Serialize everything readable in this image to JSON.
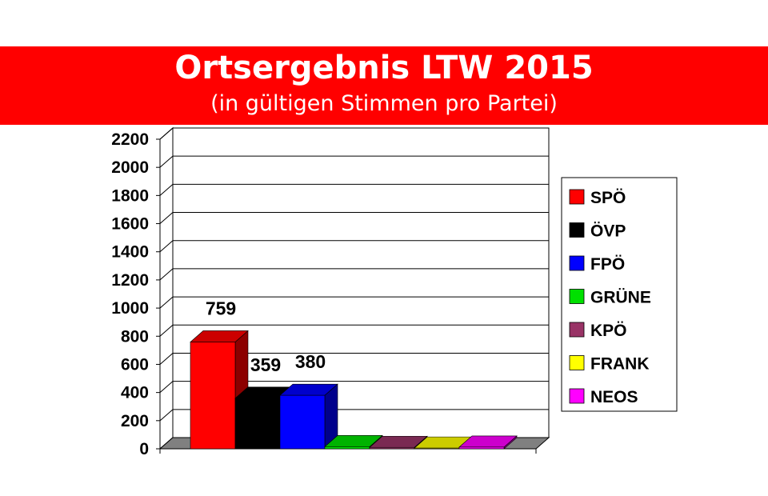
{
  "header": {
    "title": "Ortsergebnis LTW 2015",
    "subtitle": "(in gültigen Stimmen pro Partei)",
    "banner_color": "#ff0000"
  },
  "chart_data": {
    "type": "bar",
    "title": "Ortsergebnis LTW 2015",
    "subtitle": "(in gültigen Stimmen pro Partei)",
    "xlabel": "",
    "ylabel": "",
    "ylim": [
      0,
      2200
    ],
    "yticks": [
      0,
      200,
      400,
      600,
      800,
      1000,
      1200,
      1400,
      1600,
      1800,
      2000,
      2200
    ],
    "grid": true,
    "three_d": true,
    "legend_position": "right",
    "categories": [
      "SPÖ",
      "ÖVP",
      "FPÖ",
      "GRÜNE",
      "KPÖ",
      "FRANK",
      "NEOS"
    ],
    "series": [
      {
        "name": "SPÖ",
        "value": 759,
        "label": "759",
        "color": "#ff0000"
      },
      {
        "name": "ÖVP",
        "value": 359,
        "label": "359",
        "color": "#000000"
      },
      {
        "name": "FPÖ",
        "value": 380,
        "label": "380",
        "color": "#0000ff"
      },
      {
        "name": "GRÜNE",
        "value": 15,
        "label": "",
        "color": "#00e000"
      },
      {
        "name": "KPÖ",
        "value": 10,
        "label": "",
        "color": "#993366"
      },
      {
        "name": "FRANK",
        "value": 5,
        "label": "",
        "color": "#ffff00"
      },
      {
        "name": "NEOS",
        "value": 12,
        "label": "",
        "color": "#ff00ff"
      }
    ]
  }
}
